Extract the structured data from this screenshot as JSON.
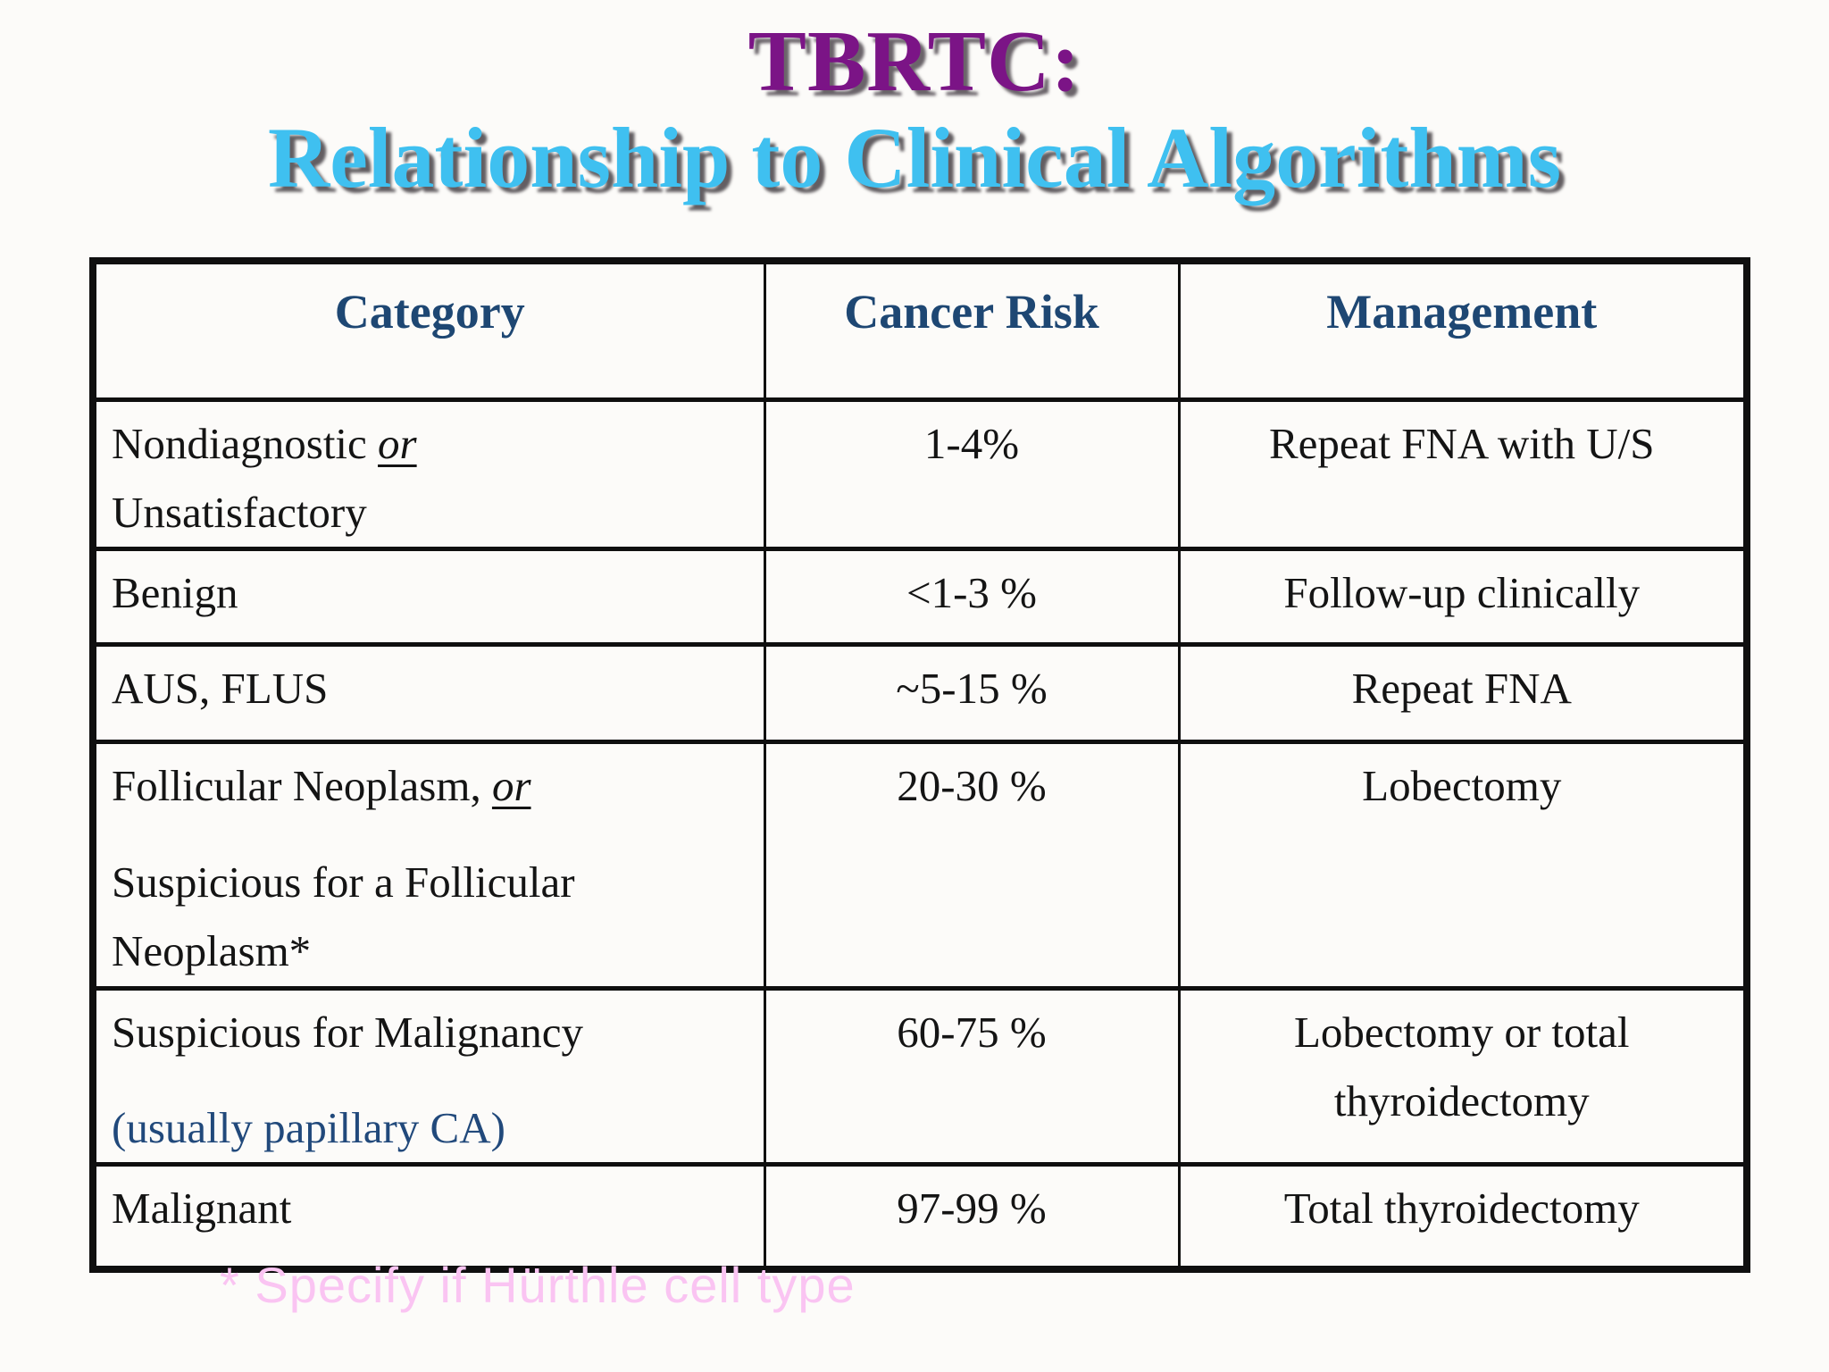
{
  "slide": {
    "title": "TBRTC:",
    "subtitle": "Relationship to Clinical Algorithms",
    "footnote": "* Specify if Hürthle cell type"
  },
  "colors": {
    "title": "#7B1486",
    "subtitle": "#3FC0F0",
    "header_text": "#1E4773",
    "body_text": "#141414",
    "note_blue": "#21497B",
    "footnote_pink": "#FAC4F2",
    "border": "#0F0F0F"
  },
  "table": {
    "headers": [
      "Category",
      "Cancer Risk",
      "Management"
    ],
    "rows": [
      {
        "category": [
          {
            "segments": [
              {
                "text": "Nondiagnostic "
              },
              {
                "text": "or",
                "em": true
              }
            ]
          },
          {
            "segments": [
              {
                "text": "Unsatisfactory"
              }
            ]
          }
        ],
        "risk": "1-4%",
        "management": [
          "Repeat FNA with U/S"
        ]
      },
      {
        "category": [
          {
            "segments": [
              {
                "text": "Benign"
              }
            ]
          }
        ],
        "risk": "<1-3 %",
        "management": [
          "Follow-up clinically"
        ]
      },
      {
        "category": [
          {
            "segments": [
              {
                "text": "AUS, FLUS"
              }
            ]
          }
        ],
        "risk": "~5-15 %",
        "management": [
          "Repeat FNA"
        ]
      },
      {
        "category": [
          {
            "segments": [
              {
                "text": "Follicular Neoplasm, "
              },
              {
                "text": "or",
                "em": true
              }
            ]
          },
          {
            "spaced": true,
            "segments": [
              {
                "text": "Suspicious for a Follicular"
              }
            ]
          },
          {
            "segments": [
              {
                "text": "Neoplasm*"
              }
            ]
          }
        ],
        "risk": "20-30 %",
        "management": [
          "Lobectomy"
        ]
      },
      {
        "category": [
          {
            "segments": [
              {
                "text": "Suspicious for Malignancy"
              }
            ]
          },
          {
            "spaced": true,
            "segments": [
              {
                "text": "(usually papillary CA)",
                "blue": true
              }
            ]
          }
        ],
        "risk": "60-75 %",
        "management": [
          "Lobectomy or total",
          "thyroidectomy"
        ]
      },
      {
        "category": [
          {
            "segments": [
              {
                "text": "Malignant"
              }
            ]
          }
        ],
        "risk": "97-99 %",
        "management": [
          "Total thyroidectomy"
        ]
      }
    ]
  }
}
